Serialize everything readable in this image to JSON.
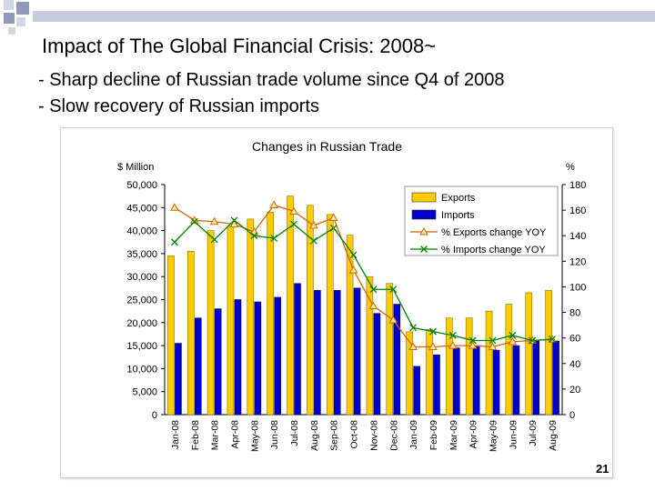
{
  "slide": {
    "title": "Impact of The Global Financial Crisis: 2008~",
    "bullets": [
      "- Sharp decline of Russian trade volume since Q4 of 2008",
      "- Slow recovery of Russian imports"
    ],
    "page_number": "21",
    "colors": {
      "header_bar": "#c6ccdc",
      "header_square_dark": "#8e9ab8",
      "header_square_light": "#d2d7e5"
    }
  },
  "chart_data": {
    "type": "bar",
    "title": "Changes in Russian Trade",
    "ylabel_left": "$ Million",
    "ylabel_right": "%",
    "ylim_left": [
      0,
      50000
    ],
    "ylim_right": [
      0,
      180
    ],
    "yticks_left": [
      "0",
      "5,000",
      "10,000",
      "15,000",
      "20,000",
      "25,000",
      "30,000",
      "35,000",
      "40,000",
      "45,000",
      "50,000"
    ],
    "yticks_right": [
      "0",
      "20",
      "40",
      "60",
      "80",
      "100",
      "120",
      "140",
      "160",
      "180"
    ],
    "legend_position": "top-right",
    "grid": false,
    "categories": [
      "Jan-08",
      "Feb-08",
      "Mar-08",
      "Apr-08",
      "May-08",
      "Jun-08",
      "Jul-08",
      "Aug-08",
      "Sep-08",
      "Oct-08",
      "Nov-08",
      "Dec-08",
      "Jan-09",
      "Feb-09",
      "Mar-09",
      "Apr-09",
      "May-09",
      "Jun-09",
      "Jul-09",
      "Aug-09"
    ],
    "series": [
      {
        "name": "Exports",
        "type": "bar",
        "axis": "left",
        "color": "#ffcc00",
        "values": [
          34500,
          35500,
          40000,
          41000,
          42500,
          44000,
          47500,
          45500,
          43500,
          39000,
          30000,
          28500,
          18000,
          18500,
          21000,
          21000,
          22500,
          24000,
          26500,
          27000
        ]
      },
      {
        "name": "Imports",
        "type": "bar",
        "axis": "left",
        "color": "#0000cc",
        "values": [
          15500,
          21000,
          23000,
          25000,
          24500,
          25500,
          28500,
          27000,
          27000,
          27500,
          22000,
          24000,
          10500,
          13000,
          14500,
          15000,
          14000,
          15000,
          16000,
          16000
        ]
      },
      {
        "name": "% Exports change YOY",
        "type": "line",
        "axis": "right",
        "color": "#cc6600",
        "marker": "triangle",
        "values": [
          162,
          152,
          151,
          149,
          143,
          164,
          159,
          148,
          154,
          113,
          85,
          74,
          53,
          53,
          54,
          54,
          53,
          57,
          58,
          59
        ]
      },
      {
        "name": "% Imports change YOY",
        "type": "line",
        "axis": "right",
        "color": "#008000",
        "marker": "x",
        "values": [
          135,
          151,
          137,
          152,
          140,
          138,
          149,
          136,
          146,
          125,
          98,
          98,
          68,
          65,
          62,
          58,
          58,
          62,
          58,
          59
        ]
      }
    ]
  }
}
